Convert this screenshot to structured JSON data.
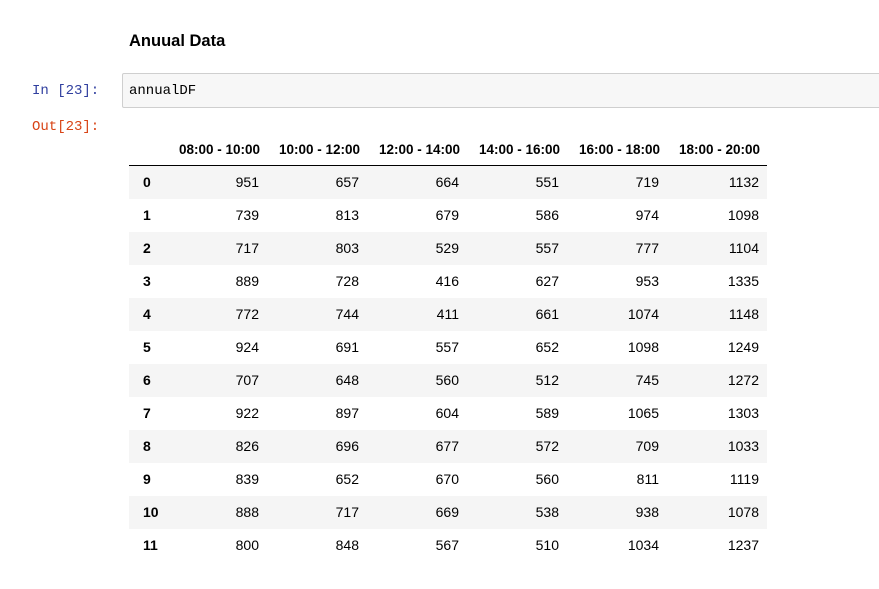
{
  "markdown": {
    "heading": "Anuual Data"
  },
  "cell": {
    "in_prompt": "In [23]:",
    "code": "annualDF",
    "out_prompt": "Out[23]:"
  },
  "table": {
    "columns": [
      "08:00 - 10:00",
      "10:00 - 12:00",
      "12:00 - 14:00",
      "14:00 - 16:00",
      "16:00 - 18:00",
      "18:00 - 20:00"
    ],
    "rows": [
      {
        "index": "0",
        "values": [
          "951",
          "657",
          "664",
          "551",
          "719",
          "1132"
        ]
      },
      {
        "index": "1",
        "values": [
          "739",
          "813",
          "679",
          "586",
          "974",
          "1098"
        ]
      },
      {
        "index": "2",
        "values": [
          "717",
          "803",
          "529",
          "557",
          "777",
          "1104"
        ]
      },
      {
        "index": "3",
        "values": [
          "889",
          "728",
          "416",
          "627",
          "953",
          "1335"
        ]
      },
      {
        "index": "4",
        "values": [
          "772",
          "744",
          "411",
          "661",
          "1074",
          "1148"
        ]
      },
      {
        "index": "5",
        "values": [
          "924",
          "691",
          "557",
          "652",
          "1098",
          "1249"
        ]
      },
      {
        "index": "6",
        "values": [
          "707",
          "648",
          "560",
          "512",
          "745",
          "1272"
        ]
      },
      {
        "index": "7",
        "values": [
          "922",
          "897",
          "604",
          "589",
          "1065",
          "1303"
        ]
      },
      {
        "index": "8",
        "values": [
          "826",
          "696",
          "677",
          "572",
          "709",
          "1033"
        ]
      },
      {
        "index": "9",
        "values": [
          "839",
          "652",
          "670",
          "560",
          "811",
          "1119"
        ]
      },
      {
        "index": "10",
        "values": [
          "888",
          "717",
          "669",
          "538",
          "938",
          "1078"
        ]
      },
      {
        "index": "11",
        "values": [
          "800",
          "848",
          "567",
          "510",
          "1034",
          "1237"
        ]
      }
    ]
  }
}
